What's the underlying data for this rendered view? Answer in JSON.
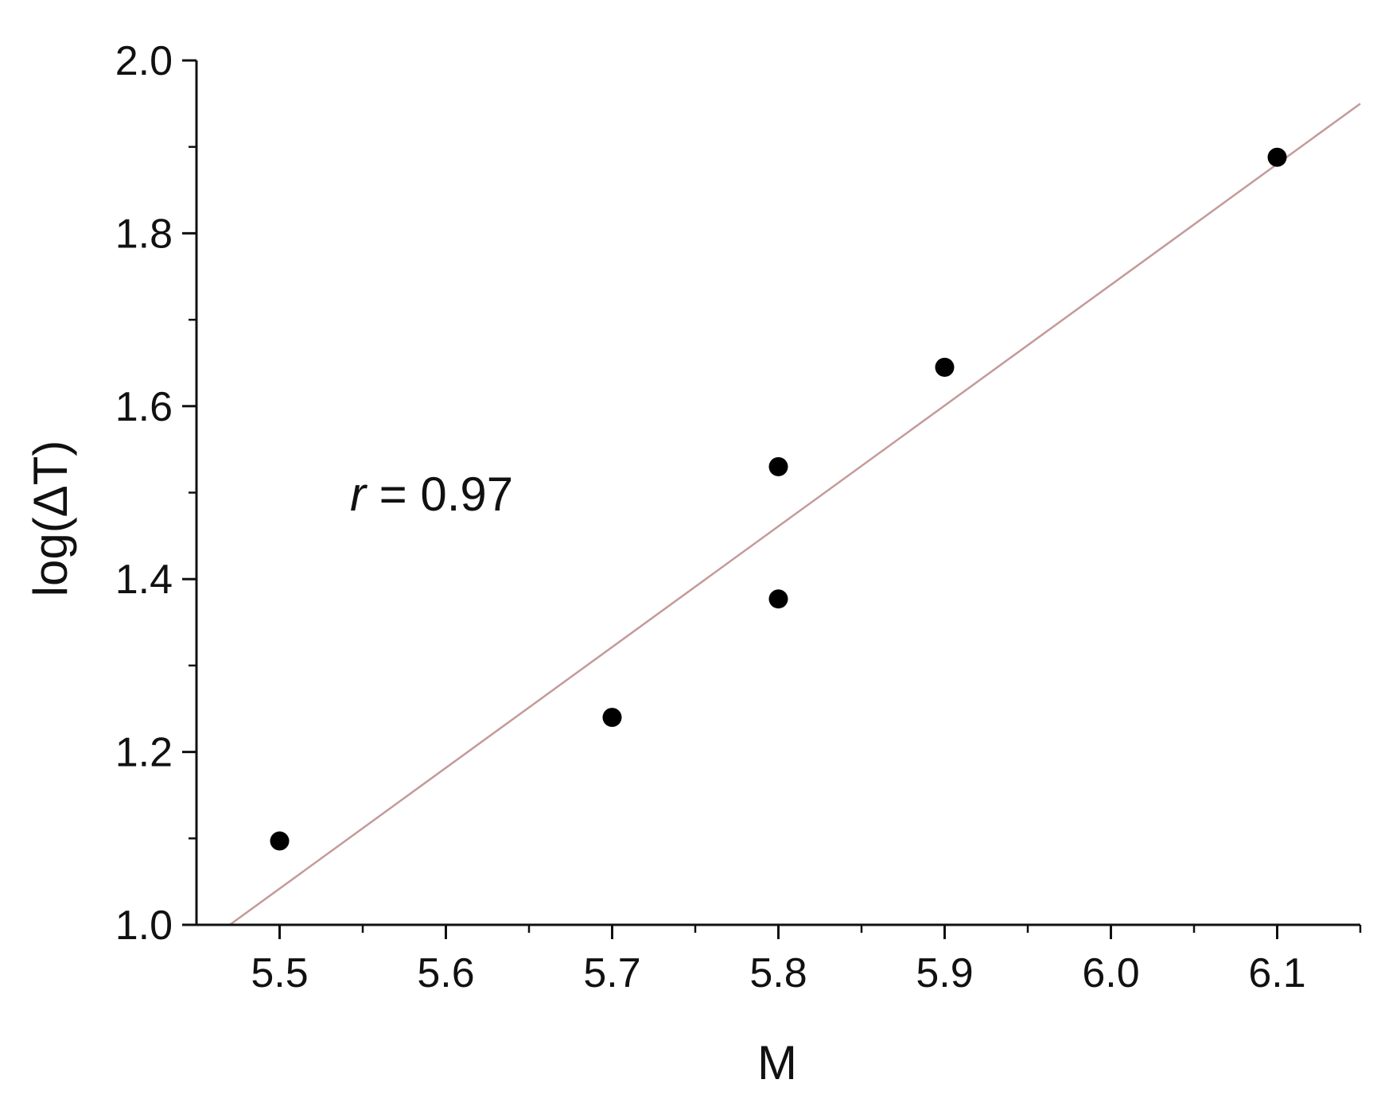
{
  "chart_data": {
    "type": "scatter",
    "xlabel": "M",
    "ylabel": "log(ΔT)",
    "xlim": [
      5.45,
      6.15
    ],
    "ylim": [
      1.0,
      2.0
    ],
    "x_ticks": [
      5.5,
      5.6,
      5.7,
      5.8,
      5.9,
      6.0,
      6.1
    ],
    "x_tick_labels": [
      "5.5",
      "5.6",
      "5.7",
      "5.8",
      "5.9",
      "6.0",
      "6.1"
    ],
    "y_ticks": [
      1.0,
      1.2,
      1.4,
      1.6,
      1.8,
      2.0
    ],
    "y_tick_labels": [
      "1.0",
      "1.2",
      "1.4",
      "1.6",
      "1.8",
      "2.0"
    ],
    "grid": false,
    "points": [
      {
        "x": 5.5,
        "y": 1.097
      },
      {
        "x": 5.7,
        "y": 1.24
      },
      {
        "x": 5.8,
        "y": 1.377
      },
      {
        "x": 5.8,
        "y": 1.53
      },
      {
        "x": 5.9,
        "y": 1.645
      },
      {
        "x": 6.1,
        "y": 1.888
      }
    ],
    "fit_line": {
      "x": [
        5.47,
        6.15
      ],
      "y": [
        1.0,
        1.95
      ]
    },
    "annotation": {
      "var": "r",
      "text": " = 0.97"
    },
    "colors": {
      "points": "#000000",
      "fit_line": "#c49a9a",
      "axis": "#111111"
    }
  }
}
